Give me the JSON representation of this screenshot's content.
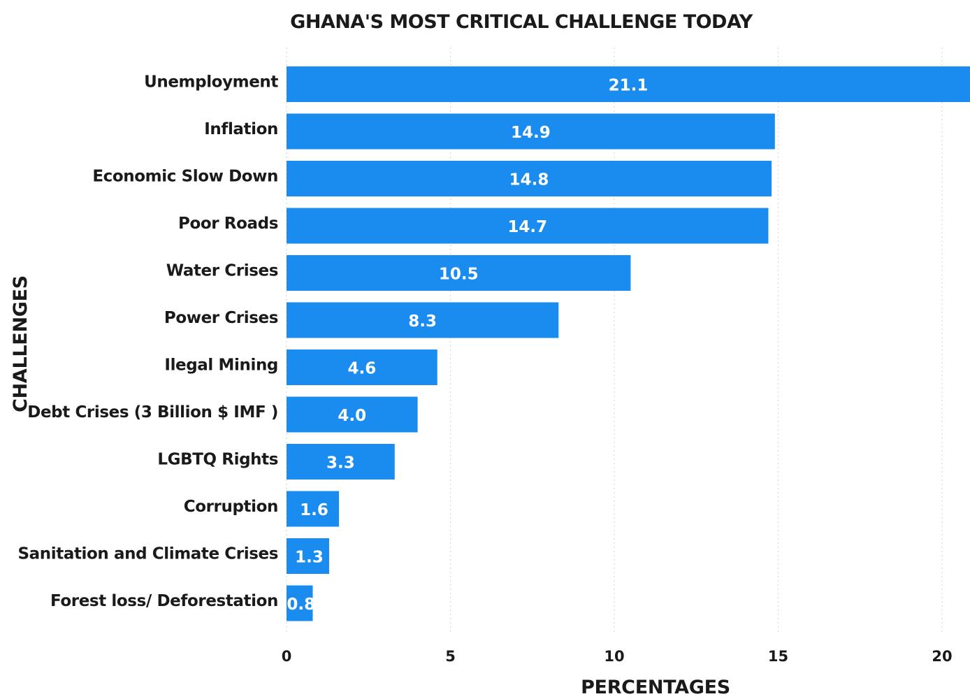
{
  "chart_data": {
    "type": "bar",
    "orientation": "horizontal",
    "title": "GHANA'S MOST CRITICAL CHALLENGE TODAY",
    "xlabel": "PERCENTAGES",
    "ylabel": "CHALLENGES",
    "categories": [
      "Unemployment",
      "Inflation",
      "Economic Slow Down",
      "Poor Roads",
      "Water Crises",
      "Power Crises",
      "Ilegal Mining",
      "Debt Crises (3 Billion $ IMF )",
      "LGBTQ Rights",
      "Corruption",
      "Sanitation and Climate Crises",
      "Forest loss/ Deforestation"
    ],
    "values": [
      21.1,
      14.9,
      14.8,
      14.7,
      10.5,
      8.3,
      4.6,
      4.0,
      3.3,
      1.6,
      1.3,
      0.8
    ],
    "value_labels": [
      "21.1",
      "14.9",
      "14.8",
      "14.7",
      "10.5",
      "8.3",
      "4.6",
      "4.0",
      "3.3",
      "1.6",
      "1.3",
      "0.8"
    ],
    "xticks": [
      "0",
      "5",
      "10",
      "15",
      "20"
    ],
    "xlim": [
      0,
      21
    ],
    "grid": true,
    "legend": "none",
    "bar_color": "#1a8cf0",
    "value_label_color": "#ffffff"
  }
}
